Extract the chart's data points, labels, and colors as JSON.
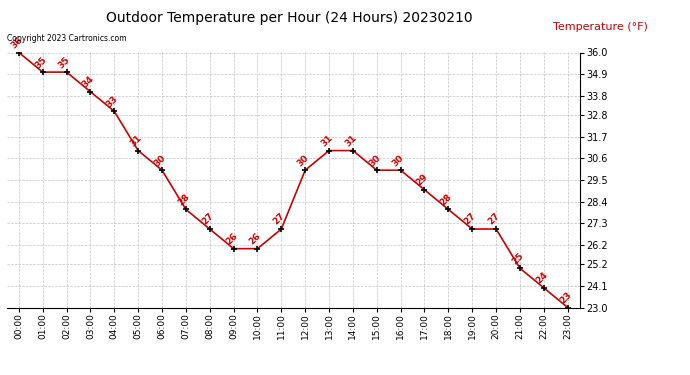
{
  "title": "Outdoor Temperature per Hour (24 Hours) 20230210",
  "ylabel": "Temperature (°F)",
  "copyright_text": "Copyright 2023 Cartronics.com",
  "hours": [
    "00:00",
    "01:00",
    "02:00",
    "03:00",
    "04:00",
    "05:00",
    "06:00",
    "07:00",
    "08:00",
    "09:00",
    "10:00",
    "11:00",
    "12:00",
    "13:00",
    "14:00",
    "15:00",
    "16:00",
    "17:00",
    "18:00",
    "19:00",
    "20:00",
    "21:00",
    "22:00",
    "23:00"
  ],
  "temperatures": [
    36,
    35,
    35,
    34,
    33,
    31,
    30,
    28,
    27,
    26,
    26,
    27,
    30,
    31,
    31,
    30,
    30,
    29,
    28,
    27,
    27,
    25,
    24,
    23
  ],
  "ylim_min": 23.0,
  "ylim_max": 36.0,
  "yticks": [
    23.0,
    24.1,
    25.2,
    26.2,
    27.3,
    28.4,
    29.5,
    30.6,
    31.7,
    32.8,
    33.8,
    34.9,
    36.0
  ],
  "line_color": "#cc0000",
  "marker_color": "#000000",
  "label_color": "#cc0000",
  "title_color": "#000000",
  "ylabel_color": "#cc0000",
  "copyright_color": "#000000",
  "bg_color": "#ffffff",
  "grid_color": "#aaaaaa"
}
